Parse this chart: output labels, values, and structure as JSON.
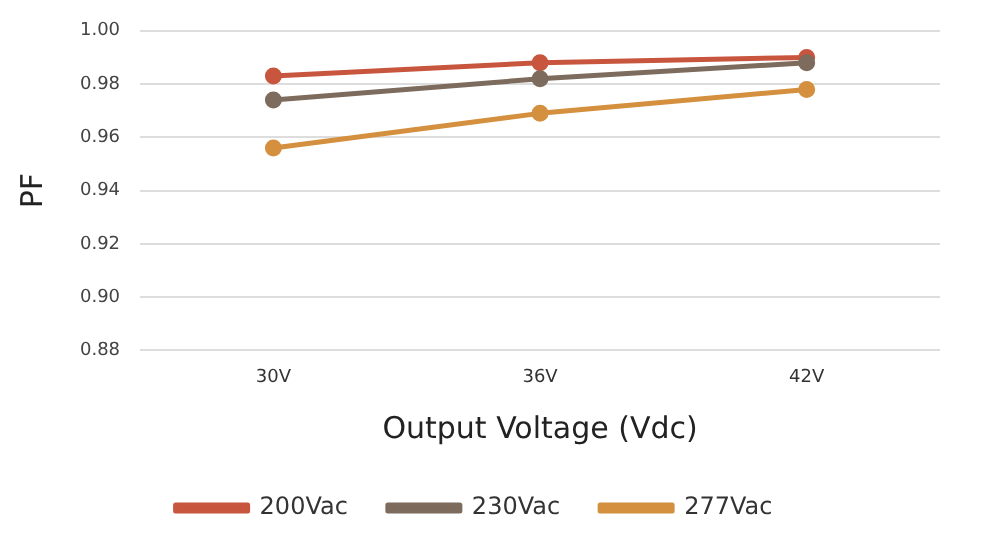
{
  "chart_data": {
    "type": "line",
    "xlabel": "Output Voltage (Vdc)",
    "ylabel": "PF",
    "categories": [
      "30V",
      "36V",
      "42V"
    ],
    "series": [
      {
        "name": "200Vac",
        "color": "#c8553d",
        "values": [
          0.983,
          0.988,
          0.99
        ]
      },
      {
        "name": "230Vac",
        "color": "#7d6b5d",
        "values": [
          0.974,
          0.982,
          0.988
        ]
      },
      {
        "name": "277Vac",
        "color": "#d4903e",
        "values": [
          0.956,
          0.969,
          0.978
        ]
      }
    ],
    "ylim": [
      0.88,
      1.0
    ],
    "yticks": [
      {
        "value": 0.88,
        "label": "0.88"
      },
      {
        "value": 0.9,
        "label": "0.90"
      },
      {
        "value": 0.92,
        "label": "0.92"
      },
      {
        "value": 0.94,
        "label": "0.94"
      },
      {
        "value": 0.96,
        "label": "0.96"
      },
      {
        "value": 0.98,
        "label": "0.98"
      },
      {
        "value": 1.0,
        "label": "1.00"
      }
    ],
    "grid": "y",
    "legend": "bottom",
    "marker": "circle",
    "line_style": "solid"
  }
}
